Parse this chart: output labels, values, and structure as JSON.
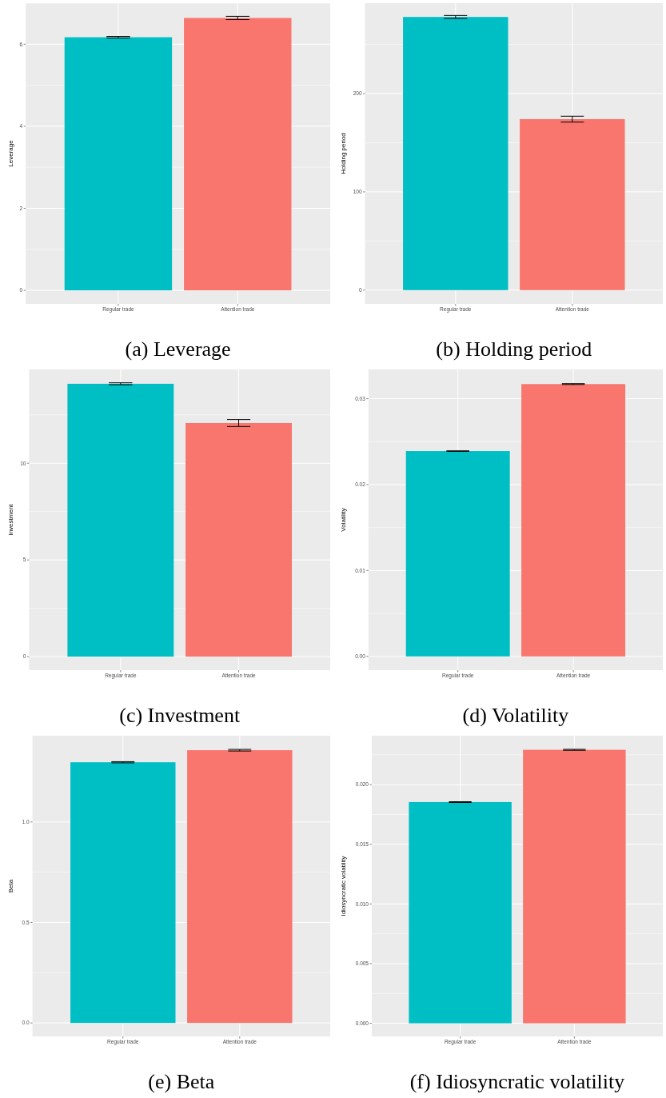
{
  "chart_data": [
    {
      "type": "bar",
      "title": "(a) Leverage",
      "ylabel": "Leverage",
      "categories": [
        "Regular trade",
        "Attention trade"
      ],
      "values": [
        6.17,
        6.64
      ],
      "colors": [
        "#00bfc4",
        "#f8766d"
      ],
      "errors": [
        0.02,
        0.04
      ],
      "ylim": [
        -0.33,
        7.0
      ],
      "yticks": [
        0,
        {
          "value": 1,
          "label": null
        },
        2,
        {
          "value": 3,
          "label": null
        },
        4,
        {
          "value": 5,
          "label": null
        },
        6,
        {
          "value": 7,
          "label": null
        }
      ],
      "grid": true
    },
    {
      "type": "bar",
      "title": "(b) Holding period",
      "ylabel": "Holding period",
      "categories": [
        "Regular trade",
        "Attention trade"
      ],
      "values": [
        278,
        174
      ],
      "colors": [
        "#00bfc4",
        "#f8766d"
      ],
      "errors": [
        1.5,
        3
      ],
      "ylim": [
        -14,
        292
      ],
      "yticks": [
        0,
        {
          "value": 50,
          "label": null
        },
        100,
        {
          "value": 150,
          "label": null
        },
        200,
        {
          "value": 250,
          "label": null
        }
      ],
      "grid": true
    },
    {
      "type": "bar",
      "title": "(c) Investment",
      "ylabel": "Investment",
      "categories": [
        "Regular trade",
        "Attention trade"
      ],
      "values": [
        14.11,
        12.08
      ],
      "colors": [
        "#00bfc4",
        "#f8766d"
      ],
      "errors": [
        0.05,
        0.18
      ],
      "ylim": [
        -0.7,
        14.85
      ],
      "yticks": [
        0,
        {
          "value": 2.5,
          "label": null
        },
        5,
        {
          "value": 7.5,
          "label": null
        },
        10,
        {
          "value": 12.5,
          "label": null
        }
      ],
      "grid": true
    },
    {
      "type": "bar",
      "title": "(d) Volatility",
      "ylabel": "Volatility",
      "categories": [
        "Regular trade",
        "Attention trade"
      ],
      "values": [
        0.0239,
        0.0317
      ],
      "colors": [
        "#00bfc4",
        "#f8766d"
      ],
      "errors": [
        3e-05,
        5e-05
      ],
      "ylim": [
        -0.0016,
        0.0334
      ],
      "yticks": [
        {
          "value": 0,
          "label": "0.00"
        },
        {
          "value": 0.005,
          "label": null
        },
        0.01,
        {
          "value": 0.015,
          "label": null
        },
        0.02,
        {
          "value": 0.025,
          "label": null
        },
        0.03
      ],
      "grid": true
    },
    {
      "type": "bar",
      "title": "(e) Beta",
      "ylabel": "Beta",
      "categories": [
        "Regular trade",
        "Attention trade"
      ],
      "values": [
        1.297,
        1.357
      ],
      "colors": [
        "#00bfc4",
        "#f8766d"
      ],
      "errors": [
        0.003,
        0.004
      ],
      "ylim": [
        -0.067,
        1.429
      ],
      "yticks": [
        {
          "value": 0,
          "label": "0.0"
        },
        {
          "value": 0.25,
          "label": null
        },
        0.5,
        {
          "value": 0.75,
          "label": null
        },
        {
          "value": 1,
          "label": "1.0"
        }
      ],
      "grid": true
    },
    {
      "type": "bar",
      "title": "(f) Idiosyncratic volatility",
      "ylabel": "Idiosyncratic volatility",
      "categories": [
        "Regular trade",
        "Attention trade"
      ],
      "values": [
        0.01854,
        0.02292
      ],
      "colors": [
        "#00bfc4",
        "#f8766d"
      ],
      "errors": [
        3e-05,
        4e-05
      ],
      "ylim": [
        -0.0011,
        0.0241
      ],
      "yticks": [
        {
          "value": 0,
          "label": "0.000"
        },
        {
          "value": 0.0025,
          "label": null
        },
        0.005,
        {
          "value": 0.0075,
          "label": null
        },
        {
          "value": 0.01,
          "label": "0.010"
        },
        0.015,
        {
          "value": 0.0175,
          "label": null
        },
        {
          "value": 0.02,
          "label": "0.020"
        },
        {
          "value": 0.0225,
          "label": null
        }
      ],
      "grid": true
    }
  ]
}
